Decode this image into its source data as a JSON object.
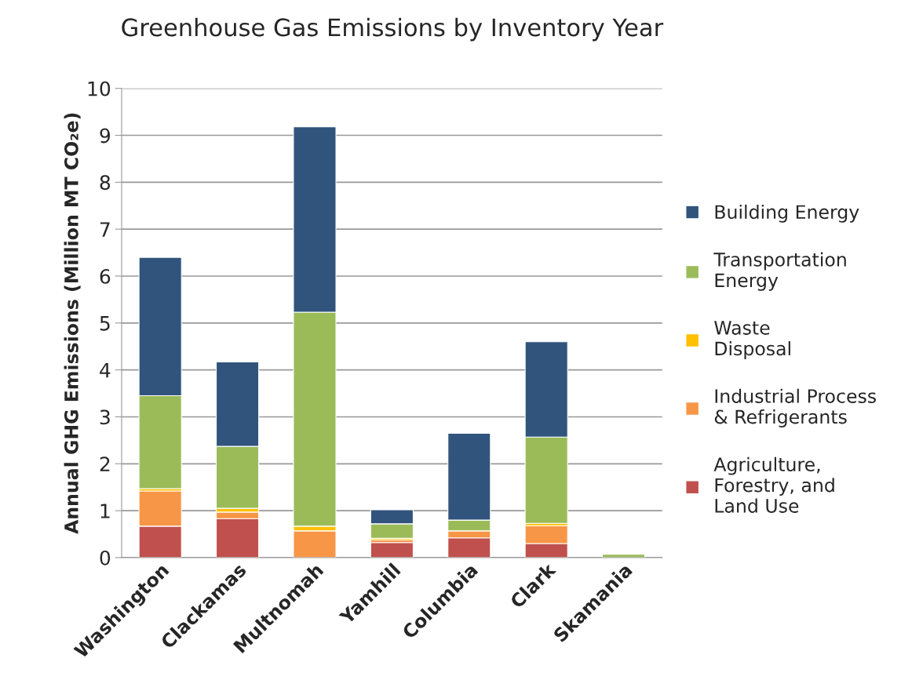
{
  "chart_data": {
    "type": "bar",
    "title": "Greenhouse Gas Emissions by Inventory Year",
    "ylabel": "Annual GHG Emissions (Million MT CO₂e)",
    "categories": [
      "Washington",
      "Clackamas",
      "Multnomah",
      "Yamhill",
      "Columbia",
      "Clark",
      "Skamania"
    ],
    "stacked": true,
    "ylim": [
      0,
      10
    ],
    "yticks": [
      0,
      1,
      2,
      3,
      4,
      5,
      6,
      7,
      8,
      9,
      10
    ],
    "grid": "y",
    "legend": "right",
    "series": [
      {
        "name": "Agriculture,\nForestry, and\nLand Use",
        "color": "#c0504d",
        "values": [
          0.67,
          0.83,
          null,
          0.32,
          0.42,
          0.3,
          null
        ]
      },
      {
        "name": "Industrial Process\n& Refrigerants",
        "color": "#f79646",
        "values": [
          0.75,
          0.14,
          0.57,
          0.06,
          0.15,
          0.38,
          null
        ]
      },
      {
        "name": "Waste\nDisposal",
        "color": "#ffc000",
        "values": [
          0.05,
          0.08,
          0.1,
          0.03,
          null,
          0.05,
          null
        ]
      },
      {
        "name": "Transportation\nEnergy",
        "color": "#9bbb59",
        "values": [
          1.98,
          1.32,
          4.56,
          0.31,
          0.23,
          1.84,
          0.07
        ]
      },
      {
        "name": "Building Energy",
        "color": "#31547c",
        "values": [
          2.95,
          1.8,
          3.95,
          0.3,
          1.85,
          2.03,
          null
        ]
      }
    ]
  }
}
